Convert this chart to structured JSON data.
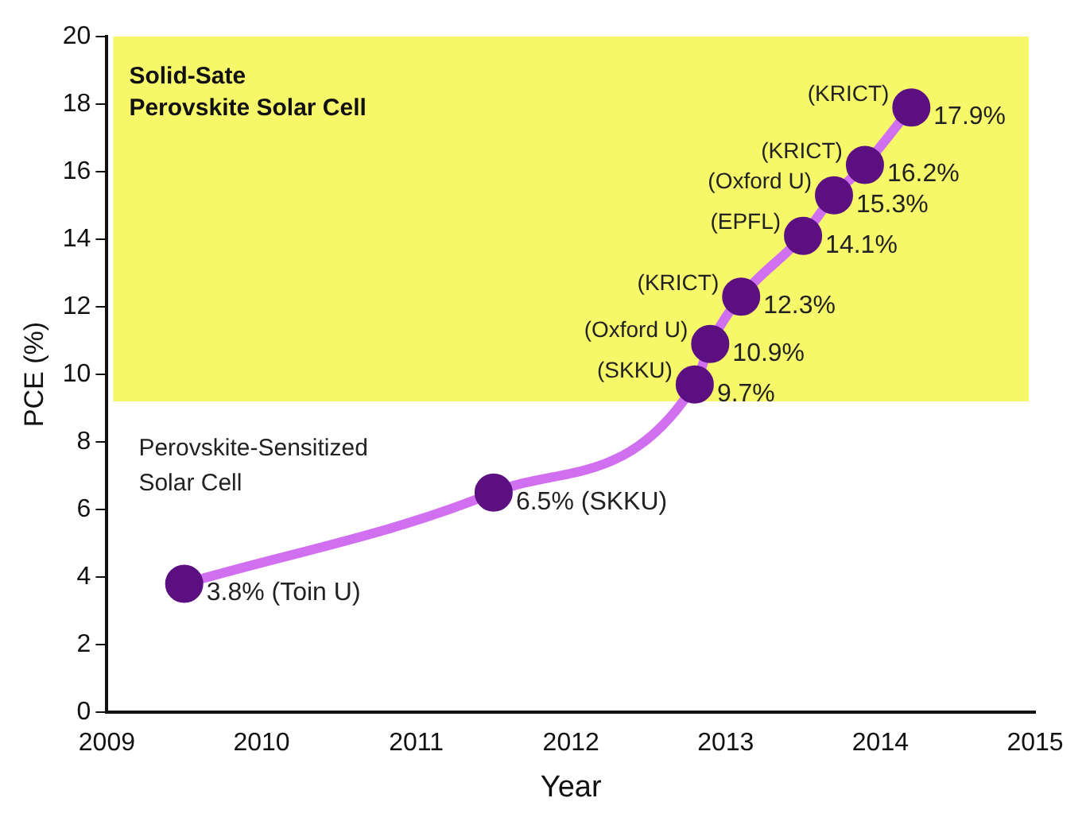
{
  "chart_data": {
    "type": "line",
    "xlabel": "Year",
    "ylabel": "PCE (%)",
    "xlim": [
      2009,
      2015
    ],
    "xticks": [
      2009,
      2010,
      2011,
      2012,
      2013,
      2014,
      2015
    ],
    "ylim": [
      0,
      20
    ],
    "yticks": [
      0,
      2,
      4,
      6,
      8,
      10,
      12,
      14,
      16,
      18,
      20
    ],
    "grid": false,
    "legend": false,
    "marker": "circle",
    "line_style": "solid",
    "series": [
      {
        "color": "#d070f0",
        "colors": [
          "#5b0f80",
          "#5b0f80",
          "#5b0f80",
          "#5b0f80",
          "#5b0f80",
          "#5b0f80",
          "#5b0f80",
          "#5b0f80",
          "#5b0f80"
        ],
        "x": [
          2009.5,
          2011.5,
          2012.8,
          2012.9,
          2013.1,
          2013.5,
          2013.7,
          2013.9,
          2014.2
        ],
        "values": [
          3.8,
          6.5,
          9.7,
          10.9,
          12.3,
          14.1,
          15.3,
          16.2,
          17.9
        ],
        "value_labels": [
          "3.8% (Toin U)",
          "6.5% (SKKU)",
          "9.7%",
          "10.9%",
          "12.3%",
          "14.1%",
          "15.3%",
          "16.2%",
          "17.9%"
        ]
      }
    ],
    "bands": [
      {
        "axis": "y",
        "from": 9.2,
        "to": 20,
        "label": "Solid-Sate\nPerovskite Solar Cell",
        "color": "#f7f76a"
      }
    ],
    "annotations": [
      "Perovskite-Sensitized\nSolar Cell",
      {
        "text": "(SKKU)",
        "x": 2012.8,
        "y": 9.7
      },
      {
        "text": "(Oxford U)",
        "x": 2012.9,
        "y": 10.9
      },
      {
        "text": "(KRICT)",
        "x": 2013.1,
        "y": 12.3
      },
      {
        "text": "(EPFL)",
        "x": 2013.5,
        "y": 14.1
      },
      {
        "text": "(Oxford U)",
        "x": 2013.7,
        "y": 15.3
      },
      {
        "text": "(KRICT)",
        "x": 2013.9,
        "y": 16.2
      },
      {
        "text": "(KRICT)",
        "x": 2014.2,
        "y": 17.9
      }
    ]
  }
}
